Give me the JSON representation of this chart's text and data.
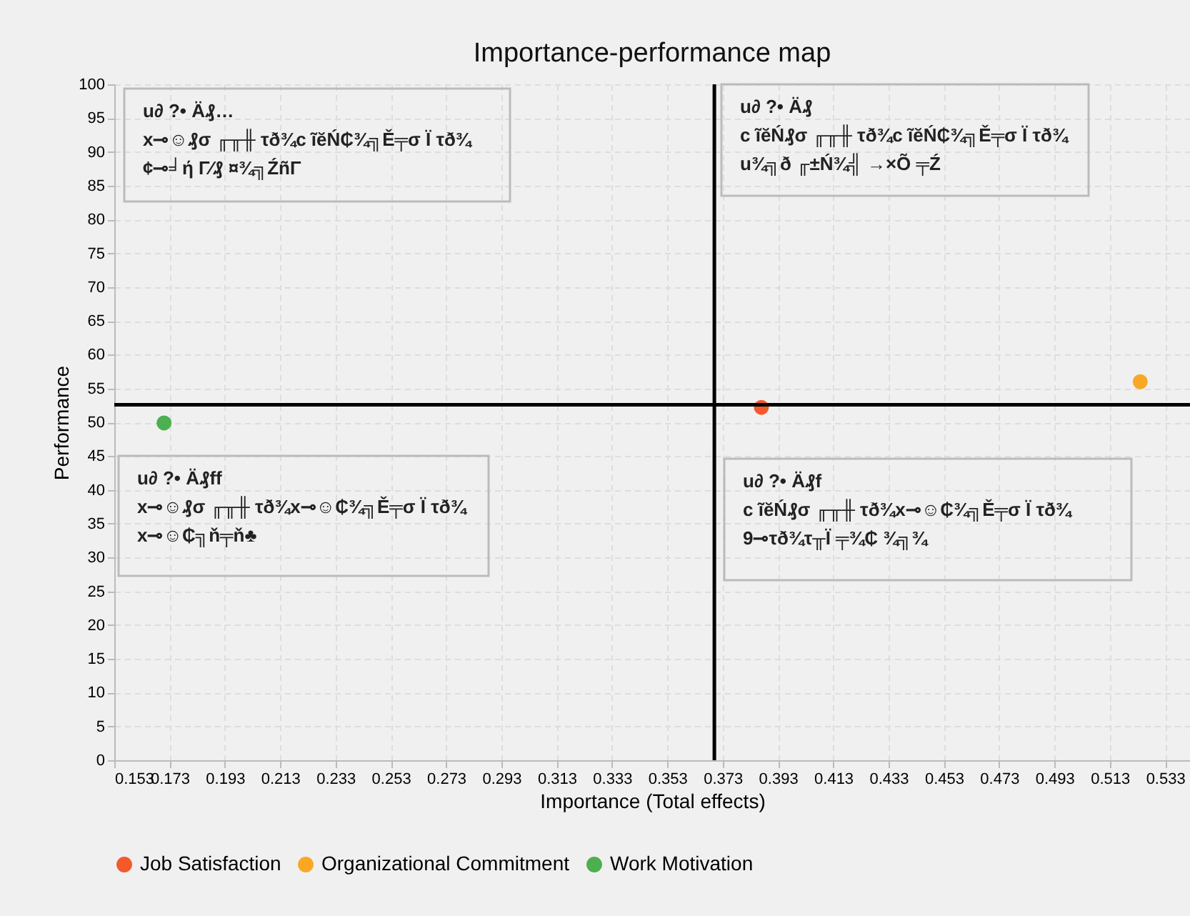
{
  "chart_data": {
    "type": "scatter",
    "title": "Importance-performance map",
    "xlabel": "Importance (Total effects)",
    "ylabel": "Performance",
    "xlim": [
      0.153,
      0.542
    ],
    "ylim": [
      0,
      100
    ],
    "xticks": [
      0.153,
      0.173,
      0.193,
      0.213,
      0.233,
      0.253,
      0.273,
      0.293,
      0.313,
      0.333,
      0.353,
      0.373,
      0.393,
      0.413,
      0.433,
      0.453,
      0.473,
      0.493,
      0.513,
      0.533
    ],
    "yticks": [
      0,
      5,
      10,
      15,
      20,
      25,
      30,
      35,
      40,
      45,
      50,
      55,
      60,
      65,
      70,
      75,
      80,
      85,
      90,
      95,
      100
    ],
    "series": [
      {
        "name": "Job Satisfaction",
        "color": "#f4592b",
        "x": [
          0.387
        ],
        "values": [
          52.2
        ]
      },
      {
        "name": "Organizational Commitment",
        "color": "#f9a825",
        "x": [
          0.524
        ],
        "values": [
          56.0
        ]
      },
      {
        "name": "Work Motivation",
        "color": "#4caf50",
        "x": [
          0.171
        ],
        "values": [
          49.9
        ]
      }
    ],
    "ref_lines": [
      {
        "axis": "x",
        "value": 0.37,
        "color": "#000000"
      },
      {
        "axis": "y",
        "value": 52.6,
        "color": "#000000"
      }
    ],
    "annotations": [
      "u∂ ?• Ä₰…\nx⊸☺₰σ ╓╥╫ τð¾c ĩĕŃ₵¾╗Ě╤σ Ï τð¾\n¢⊸╛ή Γ⁄₰ ¤¾╗ŹñΓ",
      "u∂ ?• Ä₰\nc ĩĕŃ₰σ ╓╥╫ τð¾c ĩĕŃ₵¾╗Ě╤σ Ï τð¾\nu¾╗ð ╓±Ń¾╣ →×Õ ╤Ź",
      "u∂ ?• Ä₰ff\nx⊸☺₰σ ╓╥╫ τð¾x⊸☺₵¾╗Ě╤σ Ï τð¾\nx⊸☺₵╗ň╤ň♣",
      "u∂ ?• Ä₰f\nc ĩĕŃ₰σ ╓╥╫ τð¾x⊸☺₵¾╗Ě╤σ Ï τð¾\n9⊸τð¾τ╥Ï ╤¾₵ ¾╗¾"
    ],
    "grid": true,
    "legend": "bottom",
    "marker": "circle"
  }
}
